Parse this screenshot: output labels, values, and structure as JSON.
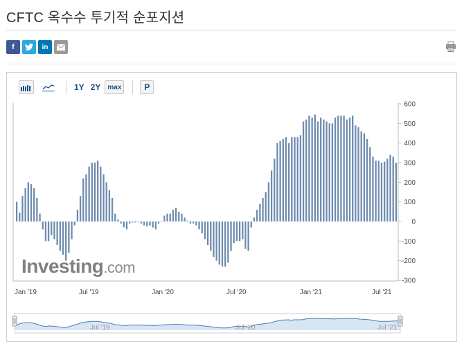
{
  "header": {
    "title": "CFTC 옥수수 투기적 순포지션"
  },
  "share": {
    "facebook": "f",
    "twitter": "t",
    "linkedin": "in",
    "email_icon": "envelope-icon",
    "print_icon": "print-icon"
  },
  "toolbar": {
    "bar_chart_icon": "bar-chart-icon",
    "line_chart_icon": "line-chart-icon",
    "range_1y": "1Y",
    "range_2y": "2Y",
    "range_max": "max",
    "p_label": "P"
  },
  "watermark": {
    "brand": "Investing",
    "suffix": ".com"
  },
  "colors": {
    "bar": "#6e8caf",
    "navigator_fill": "#d7e5f5",
    "navigator_line": "#4d7cb2"
  },
  "chart_data": {
    "type": "bar",
    "ylim": [
      -300,
      600
    ],
    "y_ticks": [
      "600",
      "500",
      "400",
      "300",
      "200",
      "100",
      "0",
      "-100",
      "-200",
      "-300"
    ],
    "x_labels": [
      "Jan '19",
      "Jul '19",
      "Jan '20",
      "Jul '20",
      "Jan '21",
      "Jul '21"
    ],
    "navigator_labels": [
      "Jul '19",
      "Jul '20",
      "Jul '21"
    ],
    "values": [
      100,
      45,
      130,
      170,
      200,
      190,
      170,
      120,
      40,
      -40,
      -100,
      -100,
      -70,
      -90,
      -120,
      -150,
      -170,
      -200,
      -160,
      -90,
      -20,
      60,
      130,
      220,
      240,
      280,
      300,
      300,
      310,
      280,
      240,
      200,
      160,
      120,
      40,
      10,
      -10,
      -30,
      -40,
      -10,
      -5,
      -5,
      0,
      -10,
      -20,
      -25,
      -20,
      -30,
      -40,
      -10,
      0,
      30,
      40,
      40,
      60,
      70,
      50,
      40,
      20,
      5,
      -10,
      -10,
      -20,
      -40,
      -60,
      -90,
      -120,
      -150,
      -180,
      -200,
      -220,
      -230,
      -230,
      -210,
      -150,
      -110,
      -100,
      -100,
      -90,
      -140,
      -150,
      -30,
      20,
      60,
      90,
      120,
      150,
      200,
      260,
      320,
      400,
      410,
      420,
      430,
      400,
      430,
      430,
      430,
      440,
      510,
      520,
      540,
      530,
      545,
      510,
      530,
      520,
      510,
      500,
      500,
      530,
      540,
      540,
      540,
      520,
      530,
      540,
      490,
      480,
      460,
      450,
      420,
      380,
      330,
      310,
      310,
      300,
      305,
      320,
      340,
      330,
      300
    ]
  }
}
